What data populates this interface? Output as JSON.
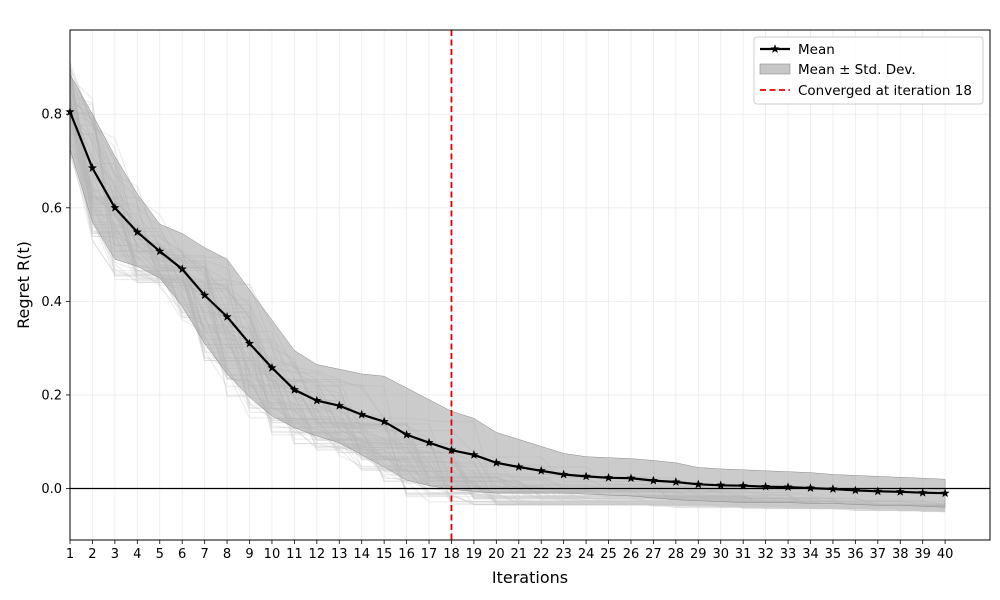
{
  "chart_data": {
    "type": "line",
    "xlabel": "Iterations",
    "ylabel": "Regret R(t)",
    "xlim": [
      1,
      42
    ],
    "ylim": [
      -0.11,
      0.98
    ],
    "x_ticks": [
      1,
      2,
      3,
      4,
      5,
      6,
      7,
      8,
      9,
      10,
      11,
      12,
      13,
      14,
      15,
      16,
      17,
      18,
      19,
      20,
      21,
      22,
      23,
      24,
      25,
      26,
      27,
      28,
      29,
      30,
      31,
      32,
      33,
      34,
      35,
      36,
      37,
      38,
      39,
      40
    ],
    "y_ticks": [
      0.0,
      0.2,
      0.4,
      0.6,
      0.8
    ],
    "y_tick_labels": [
      "0.0",
      "0.2",
      "0.4",
      "0.6",
      "0.8"
    ],
    "grid": true,
    "legend_position": "top-right",
    "x": [
      1,
      2,
      3,
      4,
      5,
      6,
      7,
      8,
      9,
      10,
      11,
      12,
      13,
      14,
      15,
      16,
      17,
      18,
      19,
      20,
      21,
      22,
      23,
      24,
      25,
      26,
      27,
      28,
      29,
      30,
      31,
      32,
      33,
      34,
      35,
      36,
      37,
      38,
      39,
      40
    ],
    "series": [
      {
        "name": "Mean",
        "values": [
          0.805,
          0.685,
          0.6,
          0.548,
          0.507,
          0.469,
          0.413,
          0.367,
          0.31,
          0.258,
          0.211,
          0.188,
          0.177,
          0.158,
          0.143,
          0.115,
          0.098,
          0.082,
          0.072,
          0.055,
          0.046,
          0.038,
          0.03,
          0.026,
          0.023,
          0.022,
          0.017,
          0.014,
          0.009,
          0.007,
          0.006,
          0.004,
          0.003,
          0.001,
          -0.001,
          -0.004,
          -0.006,
          -0.007,
          -0.009,
          -0.01
        ],
        "color": "#000000",
        "marker": "star"
      },
      {
        "name": "Mean ± Std. Dev.",
        "upper": [
          0.885,
          0.8,
          0.71,
          0.63,
          0.565,
          0.545,
          0.515,
          0.49,
          0.425,
          0.36,
          0.295,
          0.265,
          0.255,
          0.245,
          0.24,
          0.215,
          0.19,
          0.165,
          0.15,
          0.12,
          0.105,
          0.09,
          0.075,
          0.068,
          0.066,
          0.064,
          0.06,
          0.055,
          0.045,
          0.042,
          0.04,
          0.038,
          0.036,
          0.034,
          0.03,
          0.028,
          0.026,
          0.024,
          0.022,
          0.02
        ],
        "lower": [
          0.725,
          0.57,
          0.49,
          0.475,
          0.45,
          0.39,
          0.31,
          0.245,
          0.195,
          0.155,
          0.13,
          0.112,
          0.098,
          0.072,
          0.046,
          0.018,
          0.006,
          -0.002,
          -0.006,
          -0.01,
          -0.01,
          -0.01,
          -0.01,
          -0.012,
          -0.014,
          -0.016,
          -0.02,
          -0.024,
          -0.026,
          -0.028,
          -0.03,
          -0.03,
          -0.03,
          -0.032,
          -0.032,
          -0.034,
          -0.036,
          -0.036,
          -0.038,
          -0.04
        ],
        "color": "#a9a9a9"
      }
    ],
    "reference_lines": [
      {
        "name": "Converged at iteration 18",
        "orientation": "vertical",
        "x": 18,
        "color": "#e00000",
        "style": "dashed"
      },
      {
        "orientation": "horizontal",
        "y": 0.0,
        "color": "#000000",
        "style": "solid"
      }
    ],
    "background_runs": 60,
    "background_color": "#c8c8c8"
  },
  "legend": {
    "mean_label": "Mean",
    "band_label": "Mean ± Std. Dev.",
    "converged_label": "Converged at iteration 18"
  }
}
